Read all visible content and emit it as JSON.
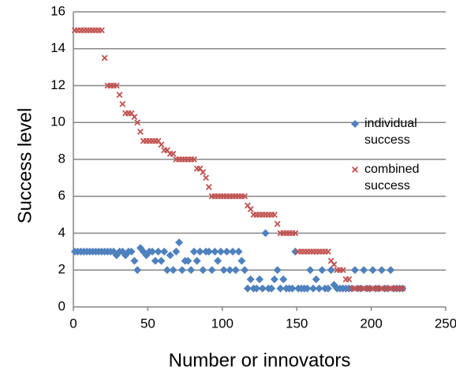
{
  "chart_data": {
    "type": "scatter",
    "x_label": "Number or innovators",
    "y_label": "Success level",
    "x": [
      1,
      3,
      5,
      7,
      9,
      11,
      13,
      15,
      17,
      19,
      21,
      23,
      25,
      27,
      29,
      31,
      33,
      35,
      37,
      39,
      41,
      43,
      45,
      47,
      49,
      51,
      53,
      55,
      57,
      59,
      61,
      63,
      65,
      67,
      69,
      71,
      73,
      75,
      77,
      79,
      81,
      83,
      85,
      87,
      89,
      91,
      93,
      95,
      97,
      99,
      101,
      103,
      105,
      107,
      109,
      111,
      113,
      115,
      117,
      119,
      121,
      123,
      125,
      127,
      129,
      131,
      133,
      135,
      137,
      139,
      141,
      143,
      145,
      147,
      149,
      151,
      153,
      155,
      157,
      159,
      161,
      163,
      165,
      167,
      169,
      171,
      173,
      175,
      177,
      179,
      181,
      183,
      185,
      187,
      189,
      191,
      193,
      195,
      197,
      199,
      201,
      203,
      205,
      207,
      209,
      211,
      213,
      215,
      217,
      219,
      221
    ],
    "series": [
      {
        "name": "individual success",
        "color": "#4f81bd",
        "marker": "diamond",
        "values": [
          3,
          3,
          3,
          3,
          3,
          3,
          3,
          3,
          3,
          3,
          3,
          3,
          3,
          3,
          2.8,
          3,
          3,
          2.8,
          3,
          3,
          2.5,
          2,
          3.2,
          3,
          2.8,
          3,
          3,
          2.5,
          3,
          2.5,
          3,
          2,
          2.8,
          2,
          3,
          3.5,
          2,
          2.5,
          2.5,
          2,
          3,
          2.5,
          3,
          2,
          3,
          3,
          2,
          3,
          2.5,
          3,
          2,
          3,
          2,
          3,
          2,
          3,
          2.5,
          2,
          1,
          1.5,
          1,
          1,
          1.5,
          1,
          4,
          1,
          1,
          1.5,
          2,
          1,
          1.5,
          1,
          1,
          1,
          3,
          1,
          1,
          1,
          1,
          2,
          1,
          1.5,
          1,
          2,
          1,
          1,
          2,
          1.2,
          1,
          1,
          1,
          1,
          1,
          1,
          2,
          1,
          1,
          2,
          1,
          1,
          2,
          1,
          1,
          2,
          1,
          1,
          2,
          1,
          1,
          1,
          1
        ]
      },
      {
        "name": "combined success",
        "color": "#c0504d",
        "marker": "x",
        "values": [
          15,
          15,
          15,
          15,
          15,
          15,
          15,
          15,
          15,
          15,
          13.5,
          12,
          12,
          12,
          12,
          11.5,
          11,
          10.5,
          10.5,
          10.5,
          10.3,
          10,
          9.5,
          9,
          9,
          9,
          9,
          9,
          9,
          8.8,
          8.5,
          8.5,
          8.3,
          8.3,
          8,
          8,
          8,
          8,
          8,
          8,
          8,
          7.5,
          7.5,
          7.3,
          7,
          6.5,
          6,
          6,
          6,
          6,
          6,
          6,
          6,
          6,
          6,
          6,
          6,
          6,
          5.5,
          5.3,
          5,
          5,
          5,
          5,
          5,
          5,
          5,
          5,
          4.5,
          4,
          4,
          4,
          4,
          4,
          4,
          3,
          3,
          3,
          3,
          3,
          3,
          3,
          3,
          3,
          3,
          3,
          2.5,
          2.3,
          2,
          2,
          2,
          1.5,
          1.5,
          1,
          1,
          1,
          1,
          1,
          1,
          1,
          1,
          1,
          1,
          1,
          1,
          1,
          1,
          1,
          1,
          1,
          1
        ]
      }
    ],
    "xlim": [
      0,
      250
    ],
    "xticks": [
      0,
      50,
      100,
      150,
      200,
      250
    ],
    "ylim": [
      0,
      16
    ],
    "yticks": [
      0,
      2,
      4,
      6,
      8,
      10,
      12,
      14,
      16
    ],
    "grid": true
  }
}
